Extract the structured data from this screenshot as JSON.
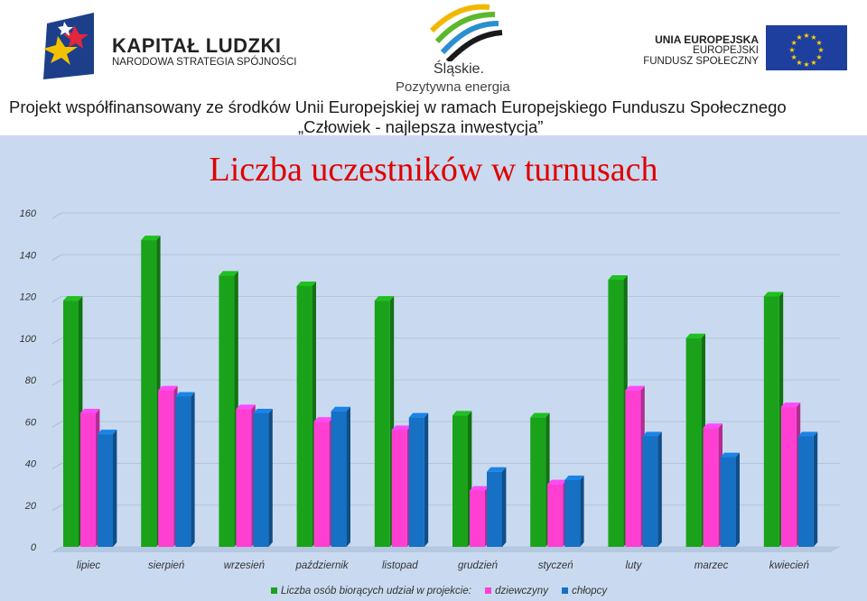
{
  "header": {
    "kl_title": "KAPITAŁ LUDZKI",
    "kl_subtitle": "NARODOWA STRATEGIA SPÓJNOŚCI",
    "slaskie_name": "Śląskie.",
    "slaskie_tagline": "Pozytywna energia",
    "eu_line1": "UNIA EUROPEJSKA",
    "eu_line2": "EUROPEJSKI",
    "eu_line3": "FUNDUSZ SPOŁECZNY",
    "project_line1": "Projekt współfinansowany ze środków Unii Europejskiej w ramach Europejskiego Funduszu Społecznego",
    "project_line2": "„Człowiek - najlepsza inwestycja”"
  },
  "colors": {
    "series1": "#1aa31a",
    "series2": "#ff3fd2",
    "series3": "#1670c4",
    "title": "#e00000",
    "background": "#c9daf0"
  },
  "chart_data": {
    "type": "bar",
    "title": "Liczba uczestników w turnusach",
    "categories": [
      "lipiec",
      "sierpień",
      "wrzesień",
      "październik",
      "listopad",
      "grudzień",
      "styczeń",
      "luty",
      "marzec",
      "kwiecień"
    ],
    "series": [
      {
        "name": "Liczba osób biorących udział w projekcie:",
        "values": [
          118,
          147,
          130,
          125,
          118,
          63,
          62,
          128,
          100,
          120
        ]
      },
      {
        "name": "dziewczyny",
        "values": [
          64,
          75,
          66,
          60,
          56,
          27,
          30,
          75,
          57,
          67
        ]
      },
      {
        "name": "chłopcy",
        "values": [
          54,
          72,
          64,
          65,
          62,
          36,
          32,
          53,
          43,
          53
        ]
      }
    ],
    "yticks": [
      "0",
      "20",
      "40",
      "60",
      "80",
      "100",
      "120",
      "140",
      "160"
    ],
    "ylim": [
      0,
      160
    ],
    "grid": true,
    "legend_position": "bottom"
  }
}
